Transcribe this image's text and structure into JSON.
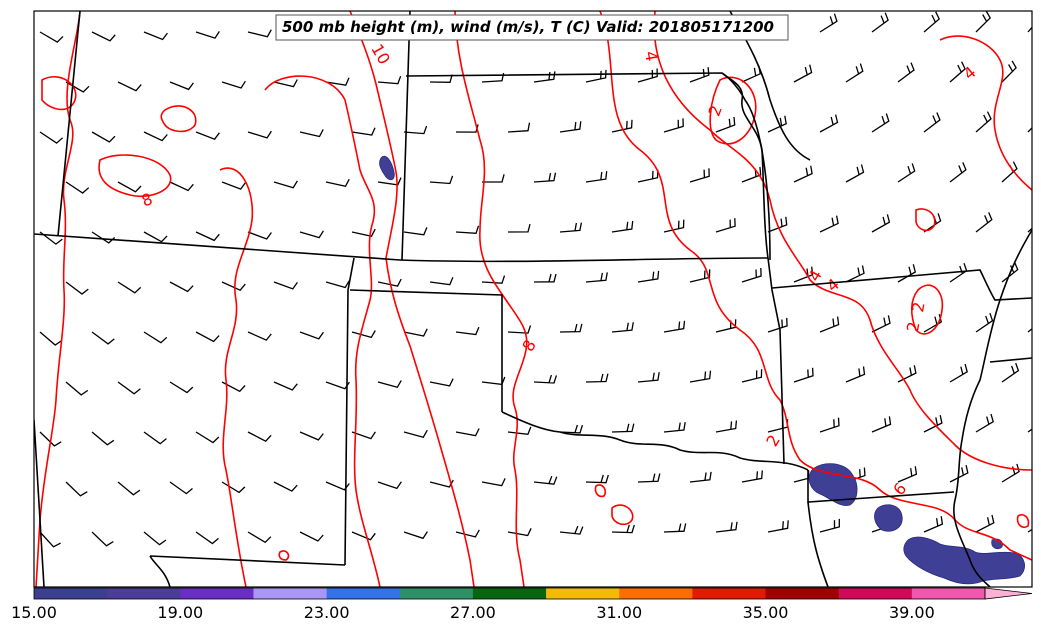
{
  "title": "500 mb height (m), wind (m/s), T (C) Valid: 201805171200",
  "colorbar": {
    "colors": [
      "#3b3f8f",
      "#4b3c98",
      "#6a2ec4",
      "#a996f5",
      "#3472e8",
      "#2e9068",
      "#07660f",
      "#f3ba09",
      "#fe6d01",
      "#e01b00",
      "#a00000",
      "#cf0a57",
      "#f058ae",
      "#fcb0d4"
    ],
    "tick_labels": [
      "15.00",
      "19.00",
      "23.00",
      "27.00",
      "31.00",
      "35.00",
      "39.00"
    ],
    "min": 15,
    "max": 43,
    "step": 2
  },
  "contour_labels": [
    "10",
    "4",
    "2",
    "8",
    "4",
    "2",
    "4",
    "2",
    "8",
    "4",
    "6",
    "2"
  ],
  "colors": {
    "contour": "#ff0000",
    "boundary": "#000000",
    "shading": "#3f3f96"
  }
}
